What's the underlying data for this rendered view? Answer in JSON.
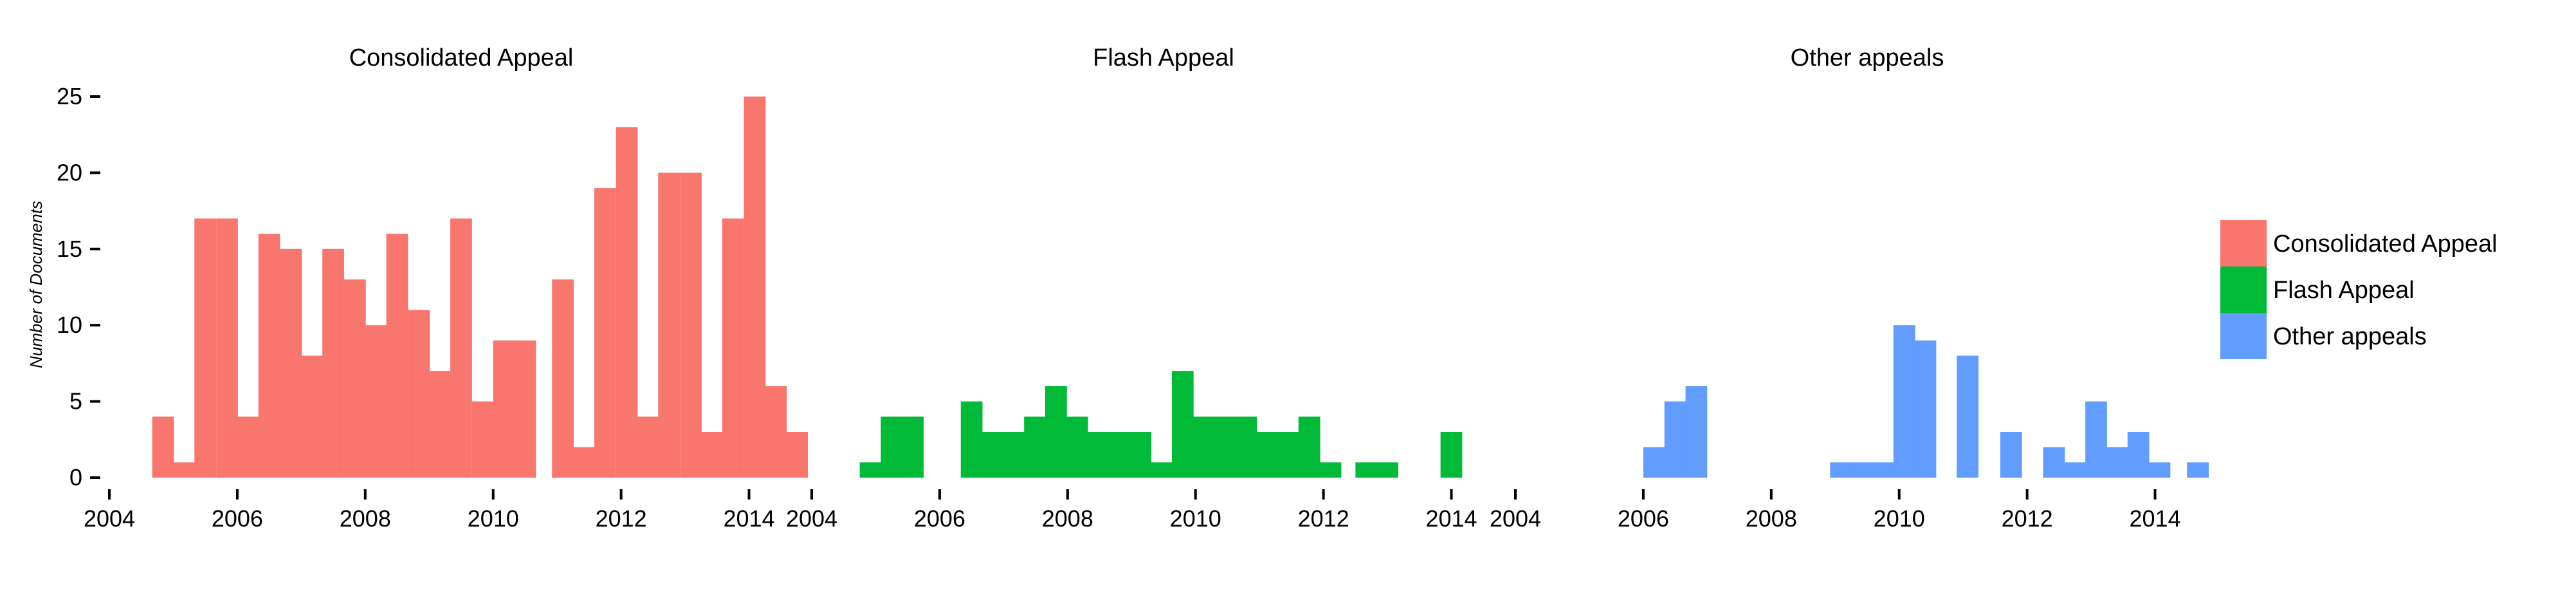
{
  "chart_data": {
    "type": "bar",
    "ylabel": "Number of Documents",
    "ylim": [
      0,
      25
    ],
    "yticks": [
      0,
      5,
      10,
      15,
      20,
      25
    ],
    "xlim": [
      2004,
      2015
    ],
    "xticks": [
      2004,
      2006,
      2008,
      2010,
      2012,
      2014
    ],
    "bin_width_years": 0.3333,
    "colors": {
      "Consolidated Appeal": "#F8766D",
      "Flash Appeal": "#00BA38",
      "Other appeals": "#619CFF"
    },
    "legend": {
      "position": "right",
      "entries": [
        "Consolidated Appeal",
        "Flash Appeal",
        "Other appeals"
      ]
    },
    "panels": [
      {
        "title": "Consolidated Appeal",
        "series": "Consolidated Appeal",
        "bins": [
          {
            "x": 2004.67,
            "y": 4
          },
          {
            "x": 2005.0,
            "y": 1
          },
          {
            "x": 2005.33,
            "y": 17
          },
          {
            "x": 2005.67,
            "y": 17
          },
          {
            "x": 2006.0,
            "y": 4
          },
          {
            "x": 2006.33,
            "y": 16
          },
          {
            "x": 2006.67,
            "y": 15
          },
          {
            "x": 2007.0,
            "y": 8
          },
          {
            "x": 2007.33,
            "y": 15
          },
          {
            "x": 2007.67,
            "y": 13
          },
          {
            "x": 2008.0,
            "y": 10
          },
          {
            "x": 2008.33,
            "y": 16
          },
          {
            "x": 2008.67,
            "y": 11
          },
          {
            "x": 2009.0,
            "y": 7
          },
          {
            "x": 2009.33,
            "y": 17
          },
          {
            "x": 2009.67,
            "y": 5
          },
          {
            "x": 2010.0,
            "y": 9
          },
          {
            "x": 2010.33,
            "y": 9
          },
          {
            "x": 2010.92,
            "y": 13
          },
          {
            "x": 2011.25,
            "y": 2
          },
          {
            "x": 2011.58,
            "y": 19
          },
          {
            "x": 2011.92,
            "y": 23
          },
          {
            "x": 2012.25,
            "y": 4
          },
          {
            "x": 2012.58,
            "y": 20
          },
          {
            "x": 2012.92,
            "y": 20
          },
          {
            "x": 2013.25,
            "y": 3
          },
          {
            "x": 2013.58,
            "y": 17
          },
          {
            "x": 2013.92,
            "y": 25
          },
          {
            "x": 2014.25,
            "y": 6
          },
          {
            "x": 2014.58,
            "y": 3
          }
        ]
      },
      {
        "title": "Flash Appeal",
        "series": "Flash Appeal",
        "bins": [
          {
            "x": 2004.75,
            "y": 1
          },
          {
            "x": 2005.08,
            "y": 4
          },
          {
            "x": 2005.41,
            "y": 4
          },
          {
            "x": 2006.33,
            "y": 5
          },
          {
            "x": 2006.66,
            "y": 3
          },
          {
            "x": 2006.99,
            "y": 3
          },
          {
            "x": 2007.32,
            "y": 4
          },
          {
            "x": 2007.65,
            "y": 6
          },
          {
            "x": 2007.98,
            "y": 4
          },
          {
            "x": 2008.31,
            "y": 3
          },
          {
            "x": 2008.64,
            "y": 3
          },
          {
            "x": 2008.97,
            "y": 3
          },
          {
            "x": 2009.3,
            "y": 1
          },
          {
            "x": 2009.63,
            "y": 7
          },
          {
            "x": 2009.96,
            "y": 4
          },
          {
            "x": 2010.29,
            "y": 4
          },
          {
            "x": 2010.62,
            "y": 4
          },
          {
            "x": 2010.95,
            "y": 3
          },
          {
            "x": 2011.28,
            "y": 3
          },
          {
            "x": 2011.61,
            "y": 4
          },
          {
            "x": 2011.94,
            "y": 1
          },
          {
            "x": 2012.5,
            "y": 1
          },
          {
            "x": 2012.83,
            "y": 1
          },
          {
            "x": 2013.83,
            "y": 3
          }
        ]
      },
      {
        "title": "Other appeals",
        "series": "Other appeals",
        "bins": [
          {
            "x": 2006.0,
            "y": 2
          },
          {
            "x": 2006.33,
            "y": 5
          },
          {
            "x": 2006.66,
            "y": 6
          },
          {
            "x": 2008.92,
            "y": 1
          },
          {
            "x": 2009.25,
            "y": 1
          },
          {
            "x": 2009.58,
            "y": 1
          },
          {
            "x": 2009.91,
            "y": 10
          },
          {
            "x": 2010.24,
            "y": 9
          },
          {
            "x": 2010.9,
            "y": 8
          },
          {
            "x": 2011.58,
            "y": 3
          },
          {
            "x": 2012.25,
            "y": 2
          },
          {
            "x": 2012.58,
            "y": 1
          },
          {
            "x": 2012.91,
            "y": 5
          },
          {
            "x": 2013.24,
            "y": 2
          },
          {
            "x": 2013.57,
            "y": 3
          },
          {
            "x": 2013.9,
            "y": 1
          },
          {
            "x": 2014.5,
            "y": 1
          }
        ]
      }
    ]
  }
}
